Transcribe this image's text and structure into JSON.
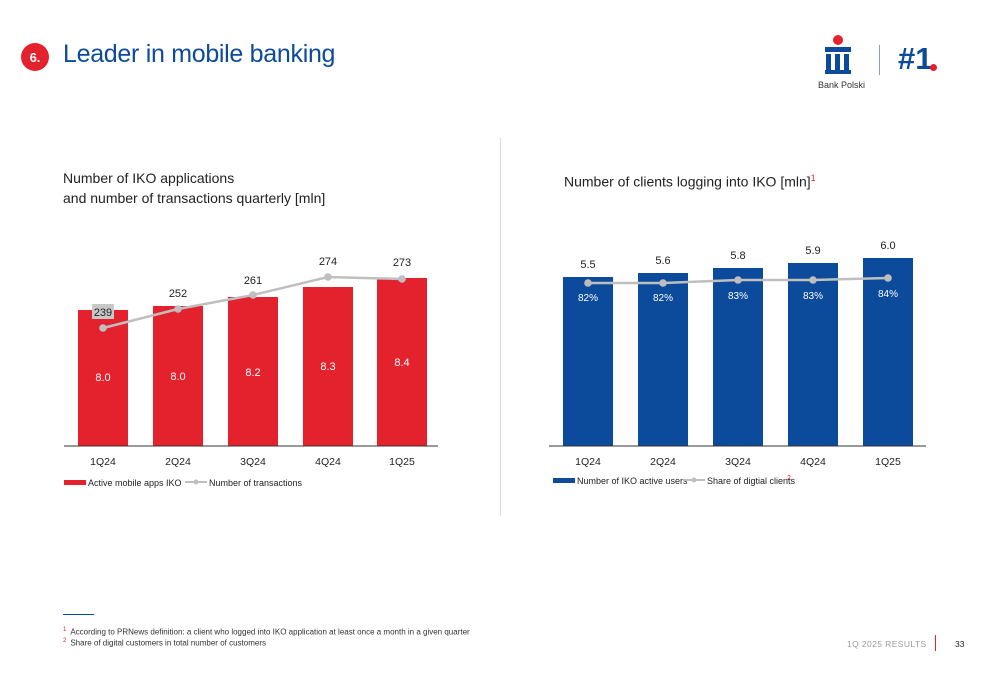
{
  "header": {
    "section_number": "6.",
    "title": "Leader in mobile banking",
    "bank_name": "Bank Polski",
    "rank": "#1",
    "logo_mark": "PKO"
  },
  "chart_data": [
    {
      "type": "bar",
      "title": "Number of IKO applications\nand number of transactions quarterly [mln]",
      "title_lines": [
        "Number of IKO applications",
        "and number of transactions quarterly [mln]"
      ],
      "categories": [
        "1Q24",
        "2Q24",
        "3Q24",
        "4Q24",
        "1Q25"
      ],
      "series": [
        {
          "name": "Active mobile apps IKO",
          "kind": "bar",
          "values": [
            8.0,
            8.0,
            8.2,
            8.3,
            8.4
          ],
          "labels": [
            "8.0",
            "8.0",
            "8.2",
            "8.3",
            "8.4"
          ],
          "color": "#e3222e"
        },
        {
          "name": "Number of transactions",
          "kind": "line",
          "values": [
            239,
            252,
            261,
            274,
            273
          ],
          "labels": [
            "239",
            "252",
            "261",
            "274",
            "273"
          ],
          "color": "#bfbfbf"
        }
      ],
      "legend": "bottom-left",
      "grid": false
    },
    {
      "type": "bar",
      "title": "Number of clients logging into IKO [mln]",
      "title_footnote": "1",
      "categories": [
        "1Q24",
        "2Q24",
        "3Q24",
        "4Q24",
        "1Q25"
      ],
      "series": [
        {
          "name": "Number of IKO active users",
          "kind": "bar",
          "values": [
            5.5,
            5.6,
            5.8,
            5.9,
            6.0
          ],
          "labels": [
            "5.5",
            "5.6",
            "5.8",
            "5.9",
            "6.0"
          ],
          "color": "#0c4a9b"
        },
        {
          "name": "Share of digtial clients",
          "name_footnote": "2",
          "kind": "line",
          "values": [
            82,
            82,
            83,
            83,
            84
          ],
          "labels": [
            "82%",
            "82%",
            "83%",
            "83%",
            "84%"
          ],
          "color": "#bfbfbf"
        }
      ],
      "legend": "bottom-left",
      "grid": false
    }
  ],
  "footnotes": [
    {
      "mark": "1",
      "text": "According to PRNews definition: a client who logged into IKO application at least once a month in a given quarter"
    },
    {
      "mark": "2",
      "text": "Share of digital customers in total number of customers"
    }
  ],
  "footer": {
    "results_label": "1Q 2025 RESULTS",
    "page_number": "33"
  },
  "colors": {
    "brand_blue": "#0c4a9b",
    "brand_red": "#e3222e",
    "line_grey": "#bfbfbf"
  }
}
